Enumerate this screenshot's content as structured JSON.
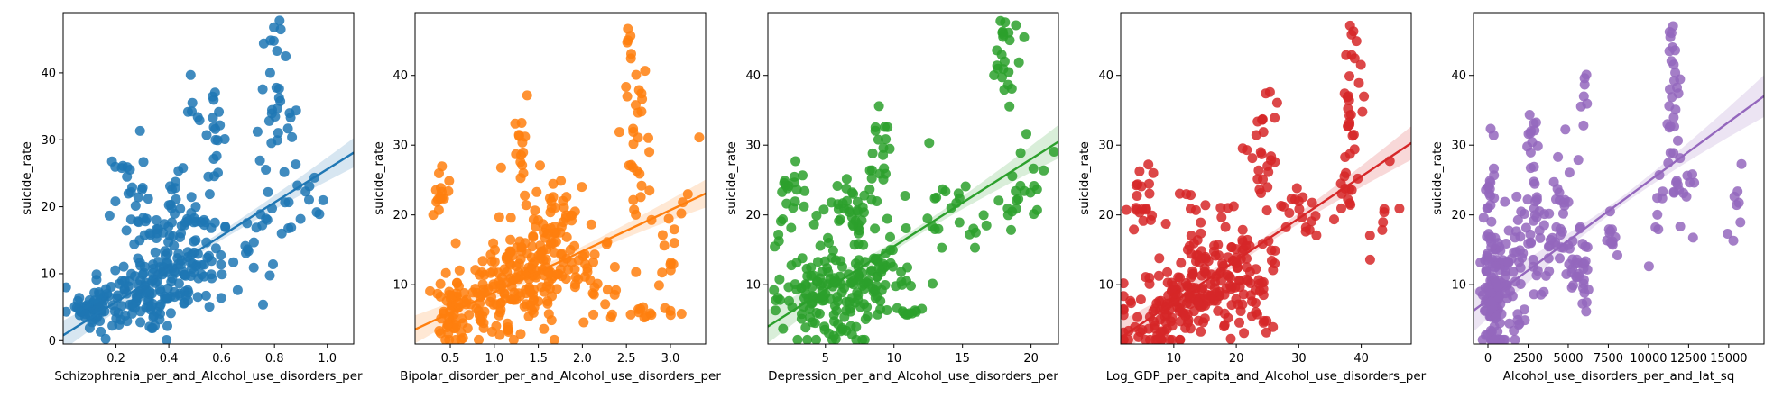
{
  "chart_data": [
    {
      "type": "scatter",
      "xlabel": "Schizophrenia_per_and_Alcohol_use_disorders_per",
      "ylabel": "suicide_rate",
      "color": "#1f77b4",
      "xlim": [
        0.0,
        1.1
      ],
      "ylim": [
        -0.5,
        49
      ],
      "xticks": [
        0.2,
        0.4,
        0.6,
        0.8,
        1.0
      ],
      "xtick_labels": [
        "0.2",
        "0.4",
        "0.6",
        "0.8",
        "1.0"
      ],
      "yticks": [
        0,
        10,
        20,
        30,
        40
      ],
      "ytick_labels": [
        "0",
        "10",
        "20",
        "30",
        "40"
      ],
      "regression": {
        "intercept": 0.8,
        "slope": 24.8
      },
      "ci_width": [
        0.6,
        2.2
      ],
      "clusters": [
        {
          "cx": 0.3,
          "cy": 7.0,
          "sx": 0.13,
          "sy": 3.2,
          "n": 140,
          "slope": 8
        },
        {
          "cx": 0.5,
          "cy": 12.0,
          "sx": 0.07,
          "sy": 4.0,
          "n": 60,
          "slope": 0
        },
        {
          "cx": 0.4,
          "cy": 18.0,
          "sx": 0.06,
          "sy": 3.0,
          "n": 40,
          "slope": 10
        },
        {
          "cx": 0.25,
          "cy": 22.0,
          "sx": 0.03,
          "sy": 4.0,
          "n": 25,
          "slope": 0
        },
        {
          "cx": 0.12,
          "cy": 5.0,
          "sx": 0.03,
          "sy": 2.0,
          "n": 30,
          "slope": 0
        },
        {
          "cx": 0.57,
          "cy": 30.0,
          "sx": 0.02,
          "sy": 3.5,
          "n": 18,
          "slope": 0
        },
        {
          "cx": 0.5,
          "cy": 36.0,
          "sx": 0.02,
          "sy": 2.5,
          "n": 6,
          "slope": 0
        },
        {
          "cx": 0.82,
          "cy": 34.0,
          "sx": 0.04,
          "sy": 6.0,
          "n": 28,
          "slope": 0
        },
        {
          "cx": 0.8,
          "cy": 45.5,
          "sx": 0.01,
          "sy": 1.2,
          "n": 5,
          "slope": 0
        },
        {
          "cx": 0.88,
          "cy": 19.0,
          "sx": 0.06,
          "sy": 3.0,
          "n": 16,
          "slope": 40
        },
        {
          "cx": 0.72,
          "cy": 14.0,
          "sx": 0.04,
          "sy": 3.0,
          "n": 15,
          "slope": 0
        }
      ]
    },
    {
      "type": "scatter",
      "xlabel": "Bipolar_disorder_per_and_Alcohol_use_disorders_per",
      "ylabel": "suicide_rate",
      "color": "#ff7f0e",
      "xlim": [
        0.1,
        3.4
      ],
      "ylim": [
        1.5,
        49
      ],
      "xticks": [
        0.5,
        1.0,
        1.5,
        2.0,
        2.5,
        3.0
      ],
      "xtick_labels": [
        "0.5",
        "1.0",
        "1.5",
        "2.0",
        "2.5",
        "3.0"
      ],
      "yticks": [
        10,
        20,
        30,
        40
      ],
      "ytick_labels": [
        "10",
        "20",
        "30",
        "40"
      ],
      "regression": {
        "intercept": 3.0,
        "slope": 5.9
      },
      "ci_width": [
        0.6,
        2.0
      ],
      "clusters": [
        {
          "cx": 1.1,
          "cy": 9.0,
          "sx": 0.35,
          "sy": 3.8,
          "n": 150,
          "slope": 3
        },
        {
          "cx": 0.5,
          "cy": 6.0,
          "sx": 0.1,
          "sy": 3.0,
          "n": 40,
          "slope": 0
        },
        {
          "cx": 0.4,
          "cy": 23.0,
          "sx": 0.04,
          "sy": 2.5,
          "n": 15,
          "slope": 0
        },
        {
          "cx": 1.5,
          "cy": 15.0,
          "sx": 0.2,
          "sy": 4.5,
          "n": 60,
          "slope": 0
        },
        {
          "cx": 1.3,
          "cy": 29.0,
          "sx": 0.05,
          "sy": 3.5,
          "n": 14,
          "slope": 0
        },
        {
          "cx": 2.1,
          "cy": 11.0,
          "sx": 0.25,
          "sy": 3.0,
          "n": 40,
          "slope": 0
        },
        {
          "cx": 2.6,
          "cy": 30.0,
          "sx": 0.07,
          "sy": 6.0,
          "n": 30,
          "slope": 0
        },
        {
          "cx": 2.55,
          "cy": 45.0,
          "sx": 0.02,
          "sy": 1.5,
          "n": 5,
          "slope": 0
        },
        {
          "cx": 2.75,
          "cy": 6.0,
          "sx": 0.2,
          "sy": 0.4,
          "n": 14,
          "slope": 0
        },
        {
          "cx": 3.0,
          "cy": 17.0,
          "sx": 0.1,
          "sy": 3.0,
          "n": 15,
          "slope": 30
        },
        {
          "cx": 1.8,
          "cy": 20.0,
          "sx": 0.15,
          "sy": 3.0,
          "n": 25,
          "slope": 0
        }
      ]
    },
    {
      "type": "scatter",
      "xlabel": "Depression_per_and_Alcohol_use_disorders_per",
      "ylabel": "suicide_rate",
      "color": "#2ca02c",
      "xlim": [
        0.8,
        22.0
      ],
      "ylim": [
        1.5,
        49
      ],
      "xticks": [
        5,
        10,
        15,
        20
      ],
      "xtick_labels": [
        "5",
        "10",
        "15",
        "20"
      ],
      "yticks": [
        10,
        20,
        30,
        40
      ],
      "ytick_labels": [
        "10",
        "20",
        "30",
        "40"
      ],
      "regression": {
        "intercept": 3.0,
        "slope": 1.25
      },
      "ci_width": [
        0.6,
        2.4
      ],
      "clusters": [
        {
          "cx": 5.5,
          "cy": 9.0,
          "sx": 2.0,
          "sy": 4.0,
          "n": 160,
          "slope": 0.5
        },
        {
          "cx": 2.5,
          "cy": 22.0,
          "sx": 0.5,
          "sy": 3.0,
          "n": 20,
          "slope": 0
        },
        {
          "cx": 7.0,
          "cy": 20.0,
          "sx": 1.2,
          "sy": 4.0,
          "n": 40,
          "slope": 0
        },
        {
          "cx": 9.5,
          "cy": 12.0,
          "sx": 1.2,
          "sy": 3.0,
          "n": 30,
          "slope": 0
        },
        {
          "cx": 10.5,
          "cy": 6.0,
          "sx": 1.5,
          "sy": 0.4,
          "n": 10,
          "slope": 0
        },
        {
          "cx": 9.0,
          "cy": 30.0,
          "sx": 0.5,
          "sy": 4.0,
          "n": 16,
          "slope": 0
        },
        {
          "cx": 14.0,
          "cy": 22.0,
          "sx": 1.0,
          "sy": 3.5,
          "n": 16,
          "slope": 1.0
        },
        {
          "cx": 18.0,
          "cy": 40.0,
          "sx": 0.6,
          "sy": 4.0,
          "n": 20,
          "slope": 0
        },
        {
          "cx": 18.0,
          "cy": 46.0,
          "sx": 0.2,
          "sy": 1.0,
          "n": 4,
          "slope": 0
        },
        {
          "cx": 19.5,
          "cy": 24.0,
          "sx": 1.0,
          "sy": 4.0,
          "n": 22,
          "slope": 2.0
        },
        {
          "cx": 16.0,
          "cy": 17.0,
          "sx": 0.5,
          "sy": 2.0,
          "n": 6,
          "slope": 0
        }
      ]
    },
    {
      "type": "scatter",
      "xlabel": "Log_GDP_per_capita_and_Alcohol_use_disorders_per",
      "ylabel": "suicide_rate",
      "color": "#d62728",
      "xlim": [
        1.5,
        48.0
      ],
      "ylim": [
        1.5,
        49
      ],
      "xticks": [
        10,
        20,
        30,
        40
      ],
      "xtick_labels": [
        "10",
        "20",
        "30",
        "40"
      ],
      "yticks": [
        10,
        20,
        30,
        40
      ],
      "ytick_labels": [
        "10",
        "20",
        "30",
        "40"
      ],
      "regression": {
        "intercept": 1.5,
        "slope": 0.6
      },
      "ci_width": [
        0.6,
        2.4
      ],
      "clusters": [
        {
          "cx": 11.0,
          "cy": 7.0,
          "sx": 5.0,
          "sy": 3.2,
          "n": 170,
          "slope": 0.3
        },
        {
          "cx": 5.0,
          "cy": 22.0,
          "sx": 1.0,
          "sy": 3.0,
          "n": 20,
          "slope": 0
        },
        {
          "cx": 16.0,
          "cy": 16.0,
          "sx": 3.0,
          "sy": 5.0,
          "n": 50,
          "slope": 0
        },
        {
          "cx": 22.0,
          "cy": 12.0,
          "sx": 2.5,
          "sy": 4.0,
          "n": 40,
          "slope": 0
        },
        {
          "cx": 24.0,
          "cy": 30.0,
          "sx": 1.2,
          "sy": 5.0,
          "n": 25,
          "slope": 0
        },
        {
          "cx": 30.0,
          "cy": 20.0,
          "sx": 2.5,
          "sy": 2.0,
          "n": 20,
          "slope": 0
        },
        {
          "cx": 38.5,
          "cy": 34.0,
          "sx": 0.8,
          "sy": 6.0,
          "n": 25,
          "slope": 0
        },
        {
          "cx": 38.5,
          "cy": 45.5,
          "sx": 0.3,
          "sy": 1.3,
          "n": 5,
          "slope": 0
        },
        {
          "cx": 38.0,
          "cy": 24.0,
          "sx": 1.0,
          "sy": 2.5,
          "n": 10,
          "slope": 0
        },
        {
          "cx": 43.5,
          "cy": 20.0,
          "sx": 1.2,
          "sy": 3.0,
          "n": 8,
          "slope": 2.0
        },
        {
          "cx": 24.0,
          "cy": 5.0,
          "sx": 1.0,
          "sy": 0.8,
          "n": 8,
          "slope": 0
        }
      ]
    },
    {
      "type": "scatter",
      "xlabel": "Alcohol_use_disorders_per_and_lat_sq",
      "ylabel": "suicide_rate",
      "color": "#9467bd",
      "xlim": [
        -900,
        17200
      ],
      "ylim": [
        1.5,
        49
      ],
      "xticks": [
        0,
        2500,
        5000,
        7500,
        10000,
        12500,
        15000
      ],
      "xtick_labels": [
        "0",
        "2500",
        "5000",
        "7500",
        "10000",
        "12500",
        "15000"
      ],
      "yticks": [
        10,
        20,
        30,
        40
      ],
      "ytick_labels": [
        "10",
        "20",
        "30",
        "40"
      ],
      "regression": {
        "intercept": 7.8,
        "slope": 0.0017
      },
      "ci_width": [
        0.6,
        3.0
      ],
      "clusters": [
        {
          "cx": 300,
          "cy": 8.0,
          "sx": 400,
          "sy": 4.5,
          "n": 120,
          "slope": 0
        },
        {
          "cx": 1500,
          "cy": 12.0,
          "sx": 600,
          "sy": 5.0,
          "n": 50,
          "slope": 0
        },
        {
          "cx": 100,
          "cy": 22.0,
          "sx": 200,
          "sy": 3.0,
          "n": 20,
          "slope": 0
        },
        {
          "cx": 3000,
          "cy": 18.0,
          "sx": 500,
          "sy": 5.0,
          "n": 30,
          "slope": 0
        },
        {
          "cx": 2800,
          "cy": 31.0,
          "sx": 150,
          "sy": 3.0,
          "n": 12,
          "slope": 0
        },
        {
          "cx": 4500,
          "cy": 20.0,
          "sx": 350,
          "sy": 5.0,
          "n": 25,
          "slope": 0
        },
        {
          "cx": 5800,
          "cy": 12.0,
          "sx": 500,
          "sy": 3.0,
          "n": 35,
          "slope": 0
        },
        {
          "cx": 6000,
          "cy": 36.0,
          "sx": 150,
          "sy": 3.0,
          "n": 8,
          "slope": 0
        },
        {
          "cx": 7700,
          "cy": 17.0,
          "sx": 300,
          "sy": 2.0,
          "n": 12,
          "slope": 0
        },
        {
          "cx": 11500,
          "cy": 38.0,
          "sx": 250,
          "sy": 4.5,
          "n": 24,
          "slope": 0
        },
        {
          "cx": 11400,
          "cy": 46.0,
          "sx": 100,
          "sy": 1.2,
          "n": 4,
          "slope": 0
        },
        {
          "cx": 12200,
          "cy": 24.0,
          "sx": 500,
          "sy": 3.5,
          "n": 14,
          "slope": 0
        },
        {
          "cx": 10600,
          "cy": 19.0,
          "sx": 300,
          "sy": 2.5,
          "n": 8,
          "slope": 0.005
        },
        {
          "cx": 15600,
          "cy": 22.0,
          "sx": 400,
          "sy": 2.5,
          "n": 8,
          "slope": 0.005
        }
      ]
    }
  ]
}
